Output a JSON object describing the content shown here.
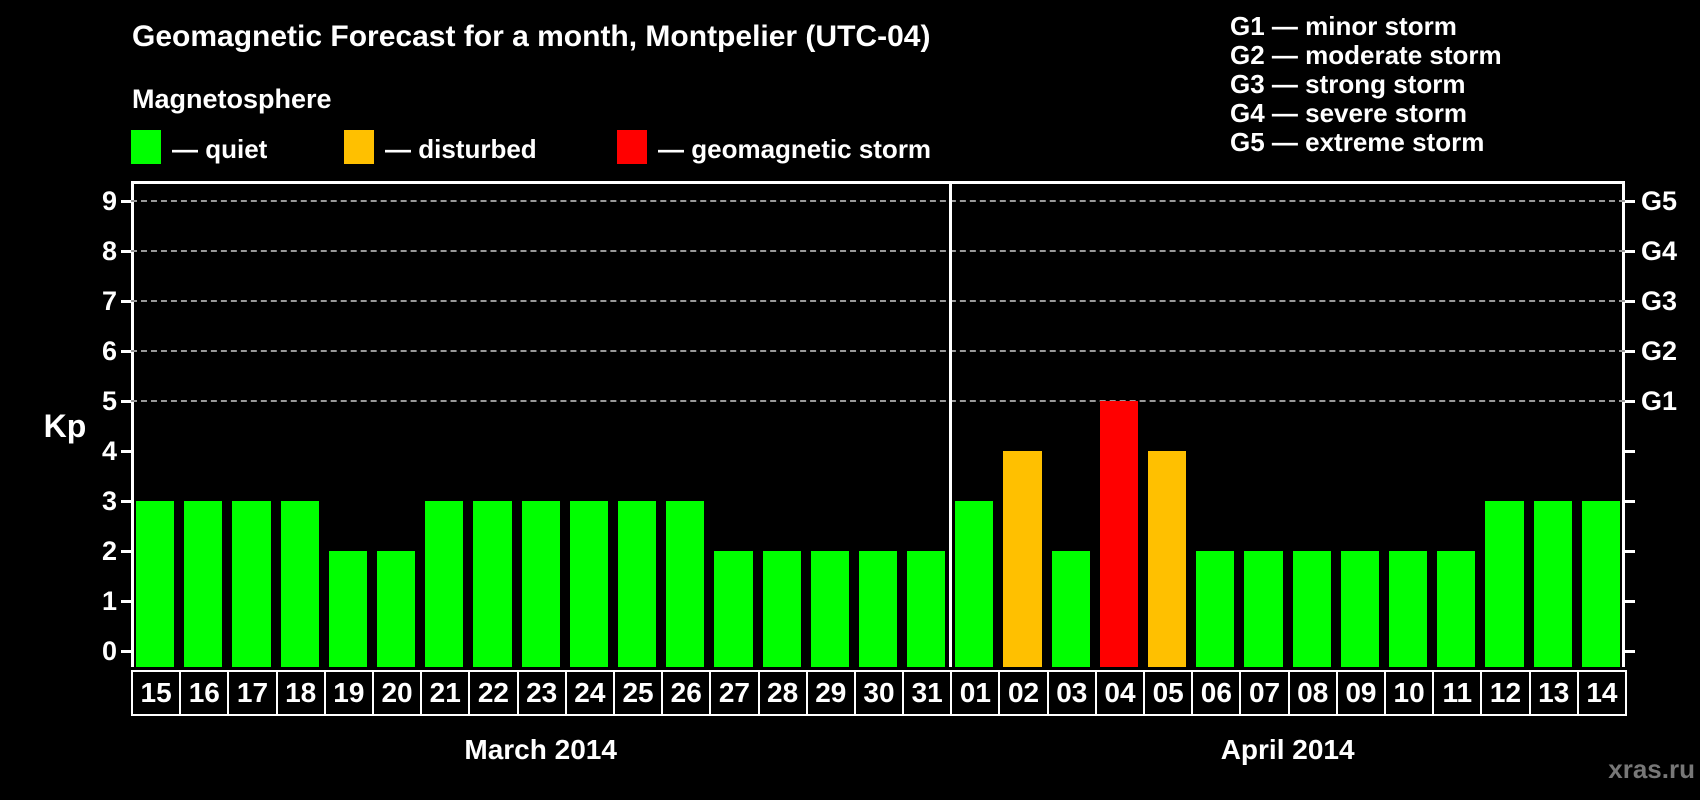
{
  "title": "Geomagnetic Forecast for a month, Montpelier (UTC-04)",
  "subtitle": "Magnetosphere",
  "colors": {
    "background": "#000000",
    "text": "#ffffff",
    "gridline": "#999999",
    "quiet": "#00ff00",
    "disturbed": "#ffc000",
    "storm": "#ff0000",
    "watermark": "#777777"
  },
  "legend": [
    {
      "status": "quiet",
      "label": "— quiet",
      "color": "#00ff00"
    },
    {
      "status": "disturbed",
      "label": "— disturbed",
      "color": "#ffc000"
    },
    {
      "status": "storm",
      "label": "— geomagnetic storm",
      "color": "#ff0000"
    }
  ],
  "g_scale_legend": [
    "G1 — minor storm",
    "G2 — moderate storm",
    "G3 — strong storm",
    "G4 — severe storm",
    "G5 — extreme storm"
  ],
  "watermark": "xras.ru",
  "chart_data": {
    "type": "bar",
    "title": "Geomagnetic Forecast for a month, Montpelier (UTC-04)",
    "ylabel": "Kp",
    "ylim": [
      0,
      9
    ],
    "y_ticks": [
      0,
      1,
      2,
      3,
      4,
      5,
      6,
      7,
      8,
      9
    ],
    "gridlines_at_kp": [
      5,
      6,
      7,
      8,
      9
    ],
    "grid": "dashed horizontal at storm levels only",
    "legend_position": "top-left",
    "right_axis": [
      {
        "label": "G1",
        "kp": 5
      },
      {
        "label": "G2",
        "kp": 6
      },
      {
        "label": "G3",
        "kp": 7
      },
      {
        "label": "G4",
        "kp": 8
      },
      {
        "label": "G5",
        "kp": 9
      }
    ],
    "months": [
      {
        "label": "March 2014",
        "days": [
          {
            "day": "15",
            "kp": 3,
            "status": "quiet"
          },
          {
            "day": "16",
            "kp": 3,
            "status": "quiet"
          },
          {
            "day": "17",
            "kp": 3,
            "status": "quiet"
          },
          {
            "day": "18",
            "kp": 3,
            "status": "quiet"
          },
          {
            "day": "19",
            "kp": 2,
            "status": "quiet"
          },
          {
            "day": "20",
            "kp": 2,
            "status": "quiet"
          },
          {
            "day": "21",
            "kp": 3,
            "status": "quiet"
          },
          {
            "day": "22",
            "kp": 3,
            "status": "quiet"
          },
          {
            "day": "23",
            "kp": 3,
            "status": "quiet"
          },
          {
            "day": "24",
            "kp": 3,
            "status": "quiet"
          },
          {
            "day": "25",
            "kp": 3,
            "status": "quiet"
          },
          {
            "day": "26",
            "kp": 3,
            "status": "quiet"
          },
          {
            "day": "27",
            "kp": 2,
            "status": "quiet"
          },
          {
            "day": "28",
            "kp": 2,
            "status": "quiet"
          },
          {
            "day": "29",
            "kp": 2,
            "status": "quiet"
          },
          {
            "day": "30",
            "kp": 2,
            "status": "quiet"
          },
          {
            "day": "31",
            "kp": 2,
            "status": "quiet"
          }
        ]
      },
      {
        "label": "April 2014",
        "days": [
          {
            "day": "01",
            "kp": 3,
            "status": "quiet"
          },
          {
            "day": "02",
            "kp": 4,
            "status": "disturbed"
          },
          {
            "day": "03",
            "kp": 2,
            "status": "quiet"
          },
          {
            "day": "04",
            "kp": 5,
            "status": "storm"
          },
          {
            "day": "05",
            "kp": 4,
            "status": "disturbed"
          },
          {
            "day": "06",
            "kp": 2,
            "status": "quiet"
          },
          {
            "day": "07",
            "kp": 2,
            "status": "quiet"
          },
          {
            "day": "08",
            "kp": 2,
            "status": "quiet"
          },
          {
            "day": "09",
            "kp": 2,
            "status": "quiet"
          },
          {
            "day": "10",
            "kp": 2,
            "status": "quiet"
          },
          {
            "day": "11",
            "kp": 2,
            "status": "quiet"
          },
          {
            "day": "12",
            "kp": 3,
            "status": "quiet"
          },
          {
            "day": "13",
            "kp": 3,
            "status": "quiet"
          },
          {
            "day": "14",
            "kp": 3,
            "status": "quiet"
          }
        ]
      }
    ]
  }
}
